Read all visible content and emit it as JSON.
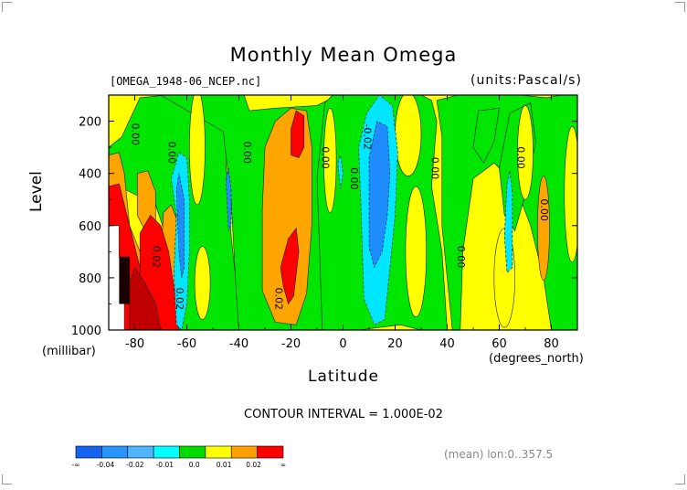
{
  "title": "Monthly Mean Omega",
  "file_label": "[OMEGA_1948-06_NCEP.nc]",
  "units_label": "(units:Pascal/s)",
  "contour_interval": "CONTOUR INTERVAL = 1.000E-02",
  "footer_note": "(mean) lon:0..357.5",
  "chart_data": {
    "type": "heatmap",
    "title": "Monthly Mean Omega",
    "xlabel": "Latitude",
    "x_unit_label": "(degrees_north)",
    "ylabel": "Level",
    "y_unit_label": "(millibar)",
    "xlim": [
      -90,
      90
    ],
    "ylim": [
      1000,
      100
    ],
    "y_inverted": true,
    "x_ticks": [
      -80,
      -60,
      -40,
      -20,
      0,
      20,
      40,
      60,
      80
    ],
    "y_ticks": [
      200,
      400,
      600,
      800,
      1000
    ],
    "x_tick_labels": [
      "-80",
      "-60",
      "-40",
      "-20",
      "0",
      "20",
      "40",
      "60",
      "80"
    ],
    "y_tick_labels": [
      "200",
      "400",
      "600",
      "800",
      "1000"
    ],
    "contour_labels": [
      {
        "text": "0.00",
        "lat": -81,
        "p": 250
      },
      {
        "text": "0.00",
        "lat": -67,
        "p": 320
      },
      {
        "text": "0.00",
        "lat": -38,
        "p": 320
      },
      {
        "text": "0.00",
        "lat": -8,
        "p": 340
      },
      {
        "text": "0.00",
        "lat": 3,
        "p": 420
      },
      {
        "text": "-0.02",
        "lat": 8,
        "p": 260
      },
      {
        "text": "0.00",
        "lat": 34,
        "p": 380
      },
      {
        "text": "0.00",
        "lat": 44,
        "p": 720
      },
      {
        "text": "0.00",
        "lat": 67,
        "p": 340
      },
      {
        "text": "0.00",
        "lat": 76,
        "p": 540
      },
      {
        "text": "0.02",
        "lat": -73,
        "p": 720
      },
      {
        "text": "0.02",
        "lat": -64,
        "p": 880
      },
      {
        "text": "0.02",
        "lat": -26,
        "p": 880
      }
    ],
    "colorbar": {
      "levels": [
        "-∞",
        "-0.04",
        "-0.02",
        "-0.01",
        "0.0",
        "0.01",
        "0.02",
        "∞"
      ],
      "colors": [
        "#1464f0",
        "#2896ff",
        "#50b4ff",
        "#00ffff",
        "#00dc00",
        "#ffff00",
        "#ffa000",
        "#ff0000"
      ]
    },
    "field_colors": {
      "-0.03": "#1e8cff",
      "-0.02": "#00e6ff",
      "-0.01": "#00e600",
      "0.00": "#00e600",
      "0.01": "#ffff00",
      "0.02": "#ffa500",
      "0.03": "#ff0000",
      "0.05": "#c00000"
    }
  }
}
